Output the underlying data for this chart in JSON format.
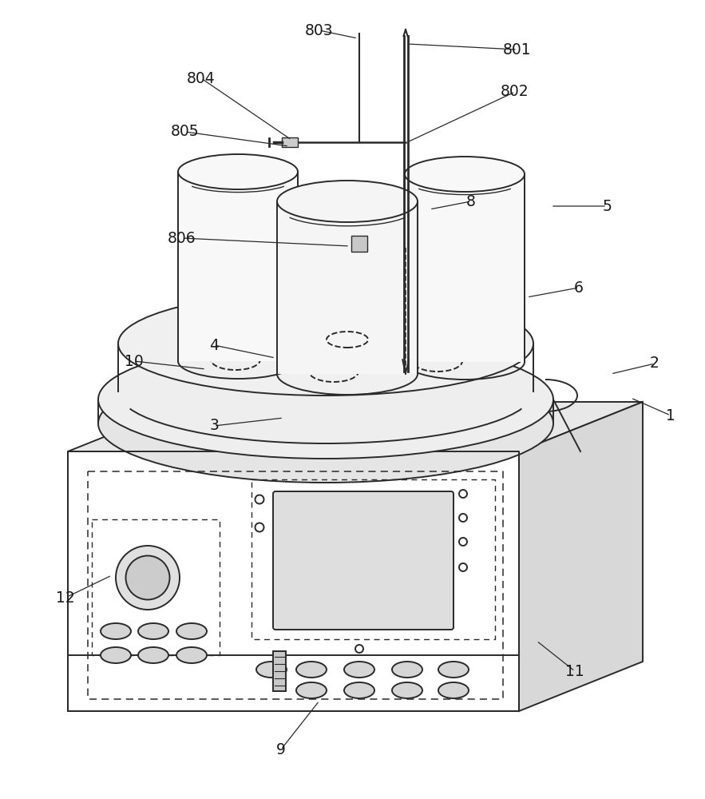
{
  "bg_color": "#ffffff",
  "line_color": "#2a2a2a",
  "line_width": 1.4,
  "labels_data": [
    [
      "1",
      840,
      520,
      790,
      498
    ],
    [
      "2",
      820,
      455,
      765,
      468
    ],
    [
      "3",
      268,
      533,
      355,
      523
    ],
    [
      "4",
      268,
      432,
      345,
      448
    ],
    [
      "5",
      760,
      258,
      690,
      258
    ],
    [
      "6",
      725,
      360,
      660,
      372
    ],
    [
      "8",
      590,
      252,
      538,
      262
    ],
    [
      "9",
      352,
      938,
      400,
      877
    ],
    [
      "10",
      168,
      452,
      258,
      462
    ],
    [
      "11",
      720,
      840,
      672,
      802
    ],
    [
      "12",
      82,
      748,
      140,
      720
    ],
    [
      "801",
      648,
      62,
      510,
      55
    ],
    [
      "802",
      645,
      115,
      510,
      178
    ],
    [
      "803",
      400,
      38,
      448,
      48
    ],
    [
      "804",
      252,
      98,
      365,
      175
    ],
    [
      "805",
      232,
      165,
      362,
      183
    ],
    [
      "806",
      228,
      298,
      438,
      308
    ]
  ]
}
